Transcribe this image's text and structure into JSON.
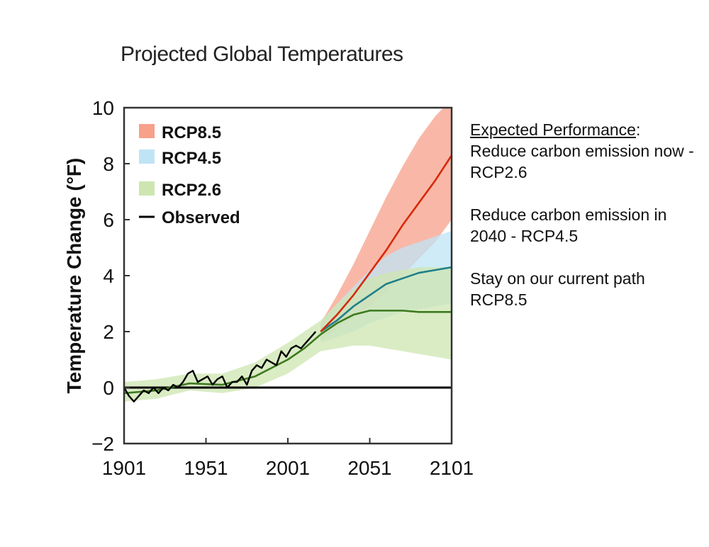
{
  "chart_data": {
    "type": "area",
    "title": "Projected Global Temperatures",
    "ylabel": "Temperature Change (°F)",
    "xlabel": "",
    "xlim": [
      1901,
      2101
    ],
    "ylim": [
      -2,
      10
    ],
    "xticks": [
      "1901",
      "1951",
      "2001",
      "2051",
      "2101"
    ],
    "yticks": [
      "−2",
      "0",
      "2",
      "4",
      "6",
      "8",
      "10"
    ],
    "legend_position": "top-left",
    "series": [
      {
        "name": "RCP8.5",
        "color": "#d62a0a",
        "fill": "#f7a08a",
        "x": [
          2021,
          2031,
          2041,
          2051,
          2061,
          2071,
          2081,
          2091,
          2101
        ],
        "values": [
          2.0,
          2.6,
          3.3,
          4.1,
          4.9,
          5.8,
          6.6,
          7.4,
          8.3
        ],
        "upper": [
          2.3,
          3.3,
          4.4,
          5.6,
          6.8,
          7.9,
          8.9,
          9.7,
          10.3
        ],
        "lower": [
          1.7,
          2.1,
          2.5,
          2.9,
          3.4,
          4.0,
          4.6,
          5.2,
          6.0
        ]
      },
      {
        "name": "RCP4.5",
        "color": "#1f7f8a",
        "fill": "#bfe4f5",
        "x": [
          2021,
          2031,
          2041,
          2051,
          2061,
          2071,
          2081,
          2091,
          2101
        ],
        "values": [
          2.0,
          2.4,
          2.9,
          3.3,
          3.7,
          3.9,
          4.1,
          4.2,
          4.3
        ],
        "upper": [
          2.3,
          3.0,
          3.6,
          4.2,
          4.7,
          5.0,
          5.2,
          5.4,
          5.6
        ],
        "lower": [
          1.6,
          1.8,
          2.0,
          2.3,
          2.5,
          2.7,
          2.8,
          2.9,
          3.0
        ]
      },
      {
        "name": "RCP2.6",
        "color": "#3d7a1f",
        "fill": "#cde6b0",
        "x": [
          1901,
          1921,
          1941,
          1961,
          1981,
          2001,
          2011,
          2021,
          2031,
          2041,
          2051,
          2061,
          2071,
          2081,
          2091,
          2101
        ],
        "values": [
          -0.2,
          -0.1,
          0.15,
          0.1,
          0.4,
          1.0,
          1.4,
          1.9,
          2.3,
          2.6,
          2.75,
          2.75,
          2.75,
          2.7,
          2.7,
          2.7
        ],
        "upper": [
          0.2,
          0.3,
          0.5,
          0.5,
          0.9,
          1.6,
          2.0,
          2.4,
          3.0,
          3.5,
          3.9,
          4.1,
          4.2,
          4.3,
          4.3,
          4.3
        ],
        "lower": [
          -0.5,
          -0.4,
          -0.1,
          -0.2,
          0.0,
          0.5,
          0.9,
          1.3,
          1.4,
          1.5,
          1.5,
          1.4,
          1.3,
          1.2,
          1.1,
          1.0
        ]
      },
      {
        "name": "Observed",
        "color": "#000000",
        "x": [
          1901,
          1904,
          1907,
          1910,
          1913,
          1916,
          1919,
          1922,
          1925,
          1928,
          1931,
          1934,
          1937,
          1940,
          1943,
          1946,
          1949,
          1952,
          1955,
          1958,
          1961,
          1964,
          1967,
          1970,
          1973,
          1976,
          1979,
          1982,
          1985,
          1988,
          1991,
          1994,
          1997,
          2000,
          2003,
          2006,
          2009,
          2012,
          2015,
          2018
        ],
        "values": [
          0.0,
          -0.3,
          -0.5,
          -0.3,
          -0.1,
          -0.2,
          0.0,
          -0.2,
          0.0,
          -0.1,
          0.1,
          0.0,
          0.2,
          0.5,
          0.6,
          0.2,
          0.3,
          0.4,
          0.1,
          0.3,
          0.4,
          0.0,
          0.2,
          0.2,
          0.4,
          0.1,
          0.6,
          0.8,
          0.7,
          1.0,
          0.9,
          0.8,
          1.3,
          1.1,
          1.4,
          1.5,
          1.4,
          1.6,
          1.8,
          2.0
        ]
      }
    ],
    "reference_line": {
      "y": 0,
      "color": "#000000"
    }
  },
  "notes": {
    "heading": "Expected Performance",
    "heading_suffix": ":",
    "line1": "Reduce carbon emission now - RCP2.6",
    "line2": "Reduce carbon emission in 2040 - RCP4.5",
    "line3": "Stay on our current path RCP8.5"
  }
}
